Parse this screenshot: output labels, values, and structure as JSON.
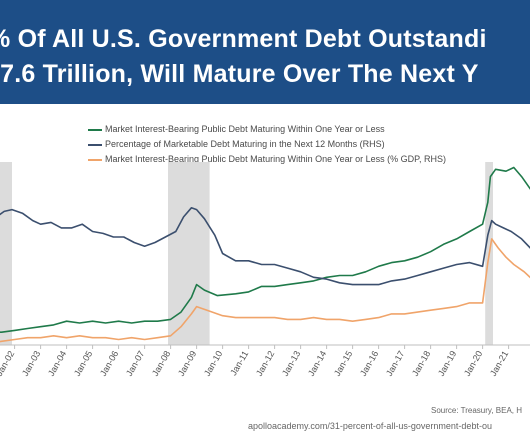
{
  "header": {
    "title_line1": "% Of All U.S. Government Debt Outstandi",
    "title_line2": "$7.6 Trillion, Will Mature Over The Next Y"
  },
  "footer": {
    "source": "Source: Treasury, BEA, H",
    "url": "apolloacademy.com/31-percent-of-all-us-government-debt-ou"
  },
  "colors": {
    "banner": "#1d4e87",
    "green": "#1f7a4a",
    "navy": "#3b4f6e",
    "orange": "#f0a46a",
    "recession": "#dcdcdc"
  },
  "chart_data": {
    "type": "line",
    "xlabel": "",
    "ylabel": "",
    "x_tick_labels": [
      "Jan-02",
      "Jan-03",
      "Jan-04",
      "Jan-05",
      "Jan-06",
      "Jan-07",
      "Jan-08",
      "Jan-09",
      "Jan-10",
      "Jan-11",
      "Jan-12",
      "Jan-13",
      "Jan-14",
      "Jan-15",
      "Jan-16",
      "Jan-17",
      "Jan-18",
      "Jan-19",
      "Jan-20",
      "Jan-21"
    ],
    "x_range": [
      2000.9,
      2021.9
    ],
    "grid": false,
    "legend_position": "top",
    "recession_shading": [
      [
        2000.9,
        2001.9
      ],
      [
        2007.9,
        2009.5
      ],
      [
        2020.1,
        2020.4
      ]
    ],
    "series": [
      {
        "name": "Market Interest-Bearing Public Debt Maturing Within One Year or Less",
        "color": "#1f7a4a",
        "relative_level": [
          [
            2001.0,
            0.07
          ],
          [
            2001.5,
            0.07
          ],
          [
            2002.0,
            0.08
          ],
          [
            2002.5,
            0.09
          ],
          [
            2003.0,
            0.1
          ],
          [
            2003.5,
            0.11
          ],
          [
            2004.0,
            0.13
          ],
          [
            2004.5,
            0.12
          ],
          [
            2005.0,
            0.13
          ],
          [
            2005.5,
            0.12
          ],
          [
            2006.0,
            0.13
          ],
          [
            2006.5,
            0.12
          ],
          [
            2007.0,
            0.13
          ],
          [
            2007.5,
            0.13
          ],
          [
            2008.0,
            0.14
          ],
          [
            2008.4,
            0.18
          ],
          [
            2008.8,
            0.26
          ],
          [
            2009.0,
            0.33
          ],
          [
            2009.3,
            0.3
          ],
          [
            2009.8,
            0.27
          ],
          [
            2010.5,
            0.28
          ],
          [
            2011.0,
            0.29
          ],
          [
            2011.5,
            0.32
          ],
          [
            2012.0,
            0.32
          ],
          [
            2012.5,
            0.33
          ],
          [
            2013.0,
            0.34
          ],
          [
            2013.5,
            0.35
          ],
          [
            2014.0,
            0.37
          ],
          [
            2014.5,
            0.38
          ],
          [
            2015.0,
            0.38
          ],
          [
            2015.5,
            0.4
          ],
          [
            2016.0,
            0.43
          ],
          [
            2016.5,
            0.45
          ],
          [
            2017.0,
            0.46
          ],
          [
            2017.5,
            0.48
          ],
          [
            2018.0,
            0.51
          ],
          [
            2018.5,
            0.55
          ],
          [
            2019.0,
            0.58
          ],
          [
            2019.5,
            0.62
          ],
          [
            2020.0,
            0.66
          ],
          [
            2020.2,
            0.78
          ],
          [
            2020.3,
            0.92
          ],
          [
            2020.5,
            0.96
          ],
          [
            2020.9,
            0.95
          ],
          [
            2021.2,
            0.97
          ],
          [
            2021.5,
            0.92
          ],
          [
            2021.9,
            0.84
          ]
        ]
      },
      {
        "name": "Percentage of Marketable Debt Maturing in the Next 12 Months (RHS)",
        "color": "#3b4f6e",
        "relative_level": [
          [
            2001.0,
            0.73
          ],
          [
            2001.3,
            0.7
          ],
          [
            2001.6,
            0.73
          ],
          [
            2001.9,
            0.74
          ],
          [
            2002.3,
            0.72
          ],
          [
            2002.7,
            0.68
          ],
          [
            2003.0,
            0.66
          ],
          [
            2003.4,
            0.67
          ],
          [
            2003.8,
            0.64
          ],
          [
            2004.2,
            0.64
          ],
          [
            2004.6,
            0.66
          ],
          [
            2005.0,
            0.62
          ],
          [
            2005.4,
            0.61
          ],
          [
            2005.8,
            0.59
          ],
          [
            2006.2,
            0.59
          ],
          [
            2006.6,
            0.56
          ],
          [
            2007.0,
            0.54
          ],
          [
            2007.4,
            0.56
          ],
          [
            2007.8,
            0.59
          ],
          [
            2008.2,
            0.62
          ],
          [
            2008.5,
            0.7
          ],
          [
            2008.8,
            0.75
          ],
          [
            2009.0,
            0.74
          ],
          [
            2009.3,
            0.69
          ],
          [
            2009.7,
            0.6
          ],
          [
            2010.0,
            0.5
          ],
          [
            2010.5,
            0.46
          ],
          [
            2011.0,
            0.46
          ],
          [
            2011.5,
            0.44
          ],
          [
            2012.0,
            0.44
          ],
          [
            2012.5,
            0.42
          ],
          [
            2013.0,
            0.4
          ],
          [
            2013.5,
            0.37
          ],
          [
            2014.0,
            0.36
          ],
          [
            2014.5,
            0.34
          ],
          [
            2015.0,
            0.33
          ],
          [
            2015.5,
            0.33
          ],
          [
            2016.0,
            0.33
          ],
          [
            2016.5,
            0.35
          ],
          [
            2017.0,
            0.36
          ],
          [
            2017.5,
            0.38
          ],
          [
            2018.0,
            0.4
          ],
          [
            2018.5,
            0.42
          ],
          [
            2019.0,
            0.44
          ],
          [
            2019.5,
            0.45
          ],
          [
            2020.0,
            0.43
          ],
          [
            2020.2,
            0.6
          ],
          [
            2020.35,
            0.68
          ],
          [
            2020.5,
            0.66
          ],
          [
            2020.8,
            0.64
          ],
          [
            2021.1,
            0.62
          ],
          [
            2021.5,
            0.58
          ],
          [
            2021.9,
            0.52
          ]
        ]
      },
      {
        "name": "Market Interest-Bearing Public Debt Maturing Within One Year or Less (% GDP, RHS)",
        "color": "#f0a46a",
        "relative_level": [
          [
            2001.0,
            0.01
          ],
          [
            2001.5,
            0.02
          ],
          [
            2002.0,
            0.03
          ],
          [
            2002.5,
            0.04
          ],
          [
            2003.0,
            0.04
          ],
          [
            2003.5,
            0.05
          ],
          [
            2004.0,
            0.04
          ],
          [
            2004.5,
            0.05
          ],
          [
            2005.0,
            0.04
          ],
          [
            2005.5,
            0.04
          ],
          [
            2006.0,
            0.03
          ],
          [
            2006.5,
            0.04
          ],
          [
            2007.0,
            0.03
          ],
          [
            2007.5,
            0.04
          ],
          [
            2008.0,
            0.05
          ],
          [
            2008.4,
            0.1
          ],
          [
            2008.8,
            0.17
          ],
          [
            2009.0,
            0.21
          ],
          [
            2009.4,
            0.19
          ],
          [
            2010.0,
            0.16
          ],
          [
            2010.5,
            0.15
          ],
          [
            2011.0,
            0.15
          ],
          [
            2011.5,
            0.15
          ],
          [
            2012.0,
            0.15
          ],
          [
            2012.5,
            0.14
          ],
          [
            2013.0,
            0.14
          ],
          [
            2013.5,
            0.15
          ],
          [
            2014.0,
            0.14
          ],
          [
            2014.5,
            0.14
          ],
          [
            2015.0,
            0.13
          ],
          [
            2015.5,
            0.14
          ],
          [
            2016.0,
            0.15
          ],
          [
            2016.5,
            0.17
          ],
          [
            2017.0,
            0.17
          ],
          [
            2017.5,
            0.18
          ],
          [
            2018.0,
            0.19
          ],
          [
            2018.5,
            0.2
          ],
          [
            2019.0,
            0.21
          ],
          [
            2019.5,
            0.23
          ],
          [
            2020.0,
            0.23
          ],
          [
            2020.2,
            0.45
          ],
          [
            2020.35,
            0.58
          ],
          [
            2020.6,
            0.53
          ],
          [
            2020.9,
            0.48
          ],
          [
            2021.2,
            0.44
          ],
          [
            2021.6,
            0.4
          ],
          [
            2021.9,
            0.36
          ]
        ]
      }
    ]
  }
}
